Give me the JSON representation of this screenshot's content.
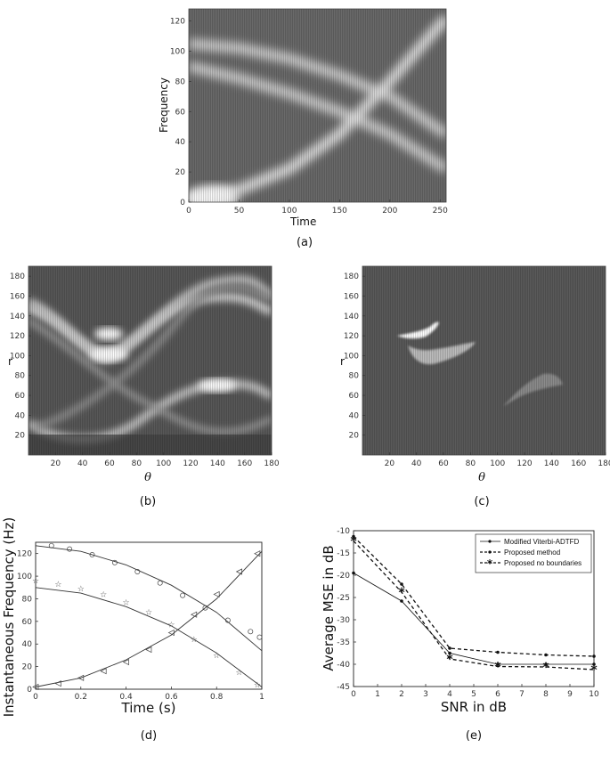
{
  "chart_data": [
    {
      "id": "a",
      "type": "heatmap",
      "caption": "(a)",
      "xlabel": "Time",
      "ylabel": "Frequency",
      "xlim": [
        0,
        256
      ],
      "ylim": [
        0,
        128
      ],
      "xticks": [
        "0",
        "50",
        "100",
        "150",
        "200",
        "250"
      ],
      "yticks": [
        "0",
        "20",
        "40",
        "60",
        "80",
        "100",
        "120"
      ],
      "ridges": [
        {
          "name": "",
          "x": [
            0,
            50,
            100,
            150,
            200,
            256
          ],
          "y": [
            105,
            102,
            95,
            84,
            70,
            45
          ]
        },
        {
          "name": "",
          "x": [
            0,
            50,
            100,
            150,
            200,
            256
          ],
          "y": [
            90,
            82,
            72,
            60,
            45,
            22
          ]
        },
        {
          "name": "",
          "x": [
            0,
            50,
            100,
            150,
            200,
            256
          ],
          "y": [
            2,
            8,
            22,
            45,
            80,
            122
          ]
        }
      ]
    },
    {
      "id": "b",
      "type": "heatmap",
      "caption": "(b)",
      "xlabel": "θ",
      "ylabel": "r",
      "xlim": [
        0,
        180
      ],
      "ylim": [
        0,
        190
      ],
      "xticks": [
        "20",
        "40",
        "60",
        "80",
        "100",
        "120",
        "140",
        "160",
        "180"
      ],
      "yticks": [
        "20",
        "40",
        "60",
        "80",
        "100",
        "120",
        "140",
        "160",
        "180"
      ]
    },
    {
      "id": "c",
      "type": "heatmap",
      "caption": "(c)",
      "xlabel": "θ",
      "ylabel": "r",
      "xlim": [
        0,
        180
      ],
      "ylim": [
        0,
        190
      ],
      "xticks": [
        "20",
        "40",
        "60",
        "80",
        "100",
        "120",
        "140",
        "160",
        "180"
      ],
      "yticks": [
        "20",
        "40",
        "60",
        "80",
        "100",
        "120",
        "140",
        "160",
        "180"
      ],
      "blobs": [
        {
          "theta": [
            35,
            55,
            72
          ],
          "r": [
            122,
            123,
            133
          ],
          "level": "bright"
        },
        {
          "theta": [
            33,
            55,
            83
          ],
          "r": [
            108,
            95,
            108
          ],
          "level": "mid"
        },
        {
          "theta": [
            105,
            128,
            148
          ],
          "r": [
            52,
            64,
            72
          ],
          "level": "dim"
        }
      ]
    },
    {
      "id": "d",
      "type": "line",
      "caption": "(d)",
      "xlabel": "Time (s)",
      "ylabel": "Instantaneous Frequency (Hz)",
      "xlim": [
        0,
        1
      ],
      "ylim": [
        0,
        130
      ],
      "xticks": [
        "0",
        "0.2",
        "0.4",
        "0.6",
        "0.8",
        "1"
      ],
      "yticks": [
        "0",
        "20",
        "40",
        "60",
        "80",
        "100",
        "120"
      ],
      "curves": [
        {
          "x": [
            0,
            0.2,
            0.4,
            0.6,
            0.8,
            1.0
          ],
          "y": [
            127,
            122,
            110,
            92,
            68,
            34
          ]
        },
        {
          "x": [
            0,
            0.2,
            0.4,
            0.6,
            0.8,
            1.0
          ],
          "y": [
            90,
            85,
            73,
            56,
            32,
            2
          ]
        },
        {
          "x": [
            0,
            0.2,
            0.4,
            0.6,
            0.8,
            1.0
          ],
          "y": [
            2,
            10,
            26,
            48,
            80,
            122
          ]
        }
      ],
      "markers": [
        {
          "symbol": "circle",
          "x": [
            0.07,
            0.15,
            0.25,
            0.35,
            0.45,
            0.55,
            0.65,
            0.75,
            0.85,
            0.95,
            0.99
          ],
          "y": [
            127,
            124,
            119,
            112,
            104,
            94,
            83,
            72,
            61,
            51,
            46
          ]
        },
        {
          "symbol": "star",
          "x": [
            0.0,
            0.1,
            0.2,
            0.3,
            0.4,
            0.5,
            0.6,
            0.7,
            0.8,
            0.9,
            0.98
          ],
          "y": [
            96,
            93,
            89,
            84,
            77,
            68,
            57,
            44,
            30,
            15,
            4
          ]
        },
        {
          "symbol": "triangle",
          "x": [
            0.0,
            0.1,
            0.2,
            0.3,
            0.4,
            0.5,
            0.6,
            0.7,
            0.8,
            0.9,
            0.98
          ],
          "y": [
            2,
            5,
            10,
            16,
            24,
            35,
            50,
            66,
            84,
            104,
            120
          ]
        }
      ]
    },
    {
      "id": "e",
      "type": "line",
      "caption": "(e)",
      "xlabel": "SNR in dB",
      "ylabel": "Average MSE in dB",
      "xlim": [
        0,
        10
      ],
      "ylim": [
        -45,
        -10
      ],
      "xticks": [
        "0",
        "1",
        "2",
        "3",
        "4",
        "5",
        "6",
        "7",
        "8",
        "9",
        "10"
      ],
      "yticks": [
        "-10",
        "-15",
        "-20",
        "-25",
        "-30",
        "-35",
        "-40",
        "-45"
      ],
      "legend_position": "top-right",
      "categories": [
        0,
        2,
        4,
        6,
        8,
        10
      ],
      "series": [
        {
          "name": "Modified Viterbi-ADTFD",
          "style": "solid",
          "marker": "dot",
          "values": [
            -19.5,
            -25.8,
            -37.5,
            -40.0,
            -40.0,
            -40.0
          ]
        },
        {
          "name": "Proposed method",
          "style": "dashed",
          "marker": "dot",
          "values": [
            -11.3,
            -22.0,
            -36.4,
            -37.3,
            -37.9,
            -38.2
          ]
        },
        {
          "name": "Proposed no boundaries",
          "style": "dashed",
          "marker": "asterisk",
          "values": [
            -12.3,
            -23.8,
            -38.8,
            -40.5,
            -40.6,
            -41.2
          ]
        }
      ]
    }
  ]
}
